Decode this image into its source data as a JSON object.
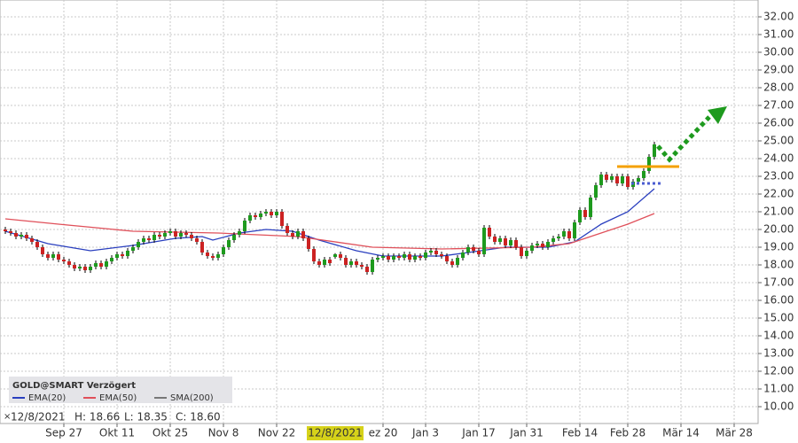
{
  "chart_data": {
    "type": "candlestick",
    "legend_title": "GOLD@SMART Verzögert",
    "info": {
      "date": "12/8/2021",
      "high": "H: 18.66",
      "low": "L: 18.35",
      "close": "C: 18.60"
    },
    "crosshair": {
      "x": 62,
      "label": "12/8/2021"
    },
    "xlim": [
      -1,
      141.5
    ],
    "ylim": [
      9.05,
      32.5
    ],
    "xticks": [
      {
        "value": 11,
        "label": "Sep 27"
      },
      {
        "value": 21,
        "label": "Okt 11"
      },
      {
        "value": 31,
        "label": "Okt 25"
      },
      {
        "value": 41,
        "label": "Nov 8"
      },
      {
        "value": 51,
        "label": "Nov 22"
      },
      {
        "value": 71,
        "label": "ez 20"
      },
      {
        "value": 79,
        "label": "Jan 3"
      },
      {
        "value": 89,
        "label": "Jan 17"
      },
      {
        "value": 98,
        "label": "Jan 31"
      },
      {
        "value": 108,
        "label": "Feb 14"
      },
      {
        "value": 117,
        "label": "Feb 28"
      },
      {
        "value": 127,
        "label": "Mär 14"
      },
      {
        "value": 137,
        "label": "Mär 28"
      }
    ],
    "yticks": [
      {
        "value": 10,
        "label": "10.00"
      },
      {
        "value": 11,
        "label": "11.00"
      },
      {
        "value": 12,
        "label": "12.00"
      },
      {
        "value": 13,
        "label": "13.00"
      },
      {
        "value": 14,
        "label": "14.00"
      },
      {
        "value": 15,
        "label": "15.00"
      },
      {
        "value": 16,
        "label": "16.00"
      },
      {
        "value": 17,
        "label": "17.00"
      },
      {
        "value": 18,
        "label": "18.00"
      },
      {
        "value": 19,
        "label": "19.00"
      },
      {
        "value": 20,
        "label": "20.00"
      },
      {
        "value": 21,
        "label": "21.00"
      },
      {
        "value": 22,
        "label": "22.00"
      },
      {
        "value": 23,
        "label": "23.00"
      },
      {
        "value": 24,
        "label": "24.00"
      },
      {
        "value": 25,
        "label": "25.00"
      },
      {
        "value": 26,
        "label": "26.00"
      },
      {
        "value": 27,
        "label": "27.00"
      },
      {
        "value": 28,
        "label": "28.00"
      },
      {
        "value": 29,
        "label": "29.00"
      },
      {
        "value": 30,
        "label": "30.00"
      },
      {
        "value": 31,
        "label": "31.00"
      },
      {
        "value": 32,
        "label": "32.00"
      }
    ],
    "grid": true,
    "up_color": "#1e9a1e",
    "down_color": "#cc2222",
    "x": [
      0,
      1,
      2,
      3,
      4,
      5,
      6,
      7,
      8,
      9,
      10,
      11,
      12,
      13,
      14,
      15,
      16,
      17,
      18,
      19,
      20,
      21,
      22,
      23,
      24,
      25,
      26,
      27,
      28,
      29,
      30,
      31,
      32,
      33,
      34,
      35,
      36,
      37,
      38,
      39,
      40,
      41,
      42,
      43,
      44,
      45,
      46,
      47,
      48,
      49,
      50,
      51,
      52,
      53,
      54,
      55,
      56,
      57,
      58,
      59,
      60,
      61,
      62,
      63,
      64,
      65,
      66,
      67,
      68,
      69,
      70,
      71,
      72,
      73,
      74,
      75,
      76,
      77,
      78,
      79,
      80,
      81,
      82,
      83,
      84,
      85,
      86,
      87,
      88,
      89,
      90,
      91,
      92,
      93,
      94,
      95,
      96,
      97,
      98,
      99,
      100,
      101,
      102,
      103,
      104,
      105,
      106,
      107,
      108,
      109,
      110,
      111,
      112,
      113,
      114,
      115,
      116,
      117,
      118,
      119,
      120,
      121,
      122
    ],
    "ohlc": [
      [
        20.0,
        20.15,
        19.75,
        19.9
      ],
      [
        19.9,
        20.05,
        19.65,
        19.8
      ],
      [
        19.8,
        19.95,
        19.45,
        19.6
      ],
      [
        19.6,
        19.85,
        19.45,
        19.7
      ],
      [
        19.7,
        19.85,
        19.35,
        19.5
      ],
      [
        19.5,
        19.65,
        19.15,
        19.3
      ],
      [
        19.3,
        19.45,
        18.85,
        19.0
      ],
      [
        19.0,
        19.15,
        18.45,
        18.6
      ],
      [
        18.6,
        18.75,
        18.25,
        18.4
      ],
      [
        18.4,
        18.75,
        18.25,
        18.6
      ],
      [
        18.6,
        18.75,
        18.15,
        18.3
      ],
      [
        18.3,
        18.45,
        18.05,
        18.2
      ],
      [
        18.2,
        18.35,
        17.85,
        18.0
      ],
      [
        18.0,
        18.15,
        17.65,
        17.8
      ],
      [
        17.8,
        18.05,
        17.65,
        17.9
      ],
      [
        17.9,
        18.05,
        17.55,
        17.7
      ],
      [
        17.7,
        18.05,
        17.55,
        17.9
      ],
      [
        17.9,
        18.25,
        17.75,
        18.1
      ],
      [
        18.1,
        18.25,
        17.75,
        17.9
      ],
      [
        17.9,
        18.35,
        17.75,
        18.2
      ],
      [
        18.2,
        18.55,
        18.05,
        18.4
      ],
      [
        18.4,
        18.75,
        18.25,
        18.6
      ],
      [
        18.6,
        18.75,
        18.35,
        18.5
      ],
      [
        18.5,
        18.95,
        18.35,
        18.8
      ],
      [
        18.8,
        19.15,
        18.65,
        19.0
      ],
      [
        19.0,
        19.45,
        18.85,
        19.3
      ],
      [
        19.3,
        19.65,
        19.15,
        19.5
      ],
      [
        19.5,
        19.65,
        19.25,
        19.4
      ],
      [
        19.4,
        19.85,
        19.25,
        19.7
      ],
      [
        19.7,
        19.85,
        19.45,
        19.6
      ],
      [
        19.6,
        19.95,
        19.45,
        19.8
      ],
      [
        19.8,
        20.05,
        19.65,
        19.9
      ],
      [
        19.9,
        20.05,
        19.45,
        19.6
      ],
      [
        19.6,
        19.95,
        19.45,
        19.8
      ],
      [
        19.8,
        19.95,
        19.55,
        19.7
      ],
      [
        19.7,
        19.85,
        19.35,
        19.5
      ],
      [
        19.5,
        19.65,
        19.15,
        19.3
      ],
      [
        19.3,
        19.45,
        18.55,
        18.7
      ],
      [
        18.7,
        18.85,
        18.35,
        18.5
      ],
      [
        18.5,
        18.65,
        18.25,
        18.4
      ],
      [
        18.4,
        18.75,
        18.25,
        18.6
      ],
      [
        18.6,
        19.15,
        18.45,
        19.0
      ],
      [
        19.0,
        19.55,
        18.85,
        19.4
      ],
      [
        19.4,
        19.85,
        19.25,
        19.7
      ],
      [
        19.7,
        20.05,
        19.55,
        19.9
      ],
      [
        19.9,
        20.65,
        19.75,
        20.5
      ],
      [
        20.5,
        20.95,
        20.35,
        20.8
      ],
      [
        20.8,
        20.95,
        20.55,
        20.7
      ],
      [
        20.7,
        21.05,
        20.55,
        20.9
      ],
      [
        20.9,
        21.15,
        20.75,
        21.0
      ],
      [
        21.0,
        21.15,
        20.65,
        20.8
      ],
      [
        20.8,
        21.15,
        20.65,
        21.0
      ],
      [
        21.0,
        21.15,
        20.05,
        20.2
      ],
      [
        20.2,
        20.35,
        19.65,
        19.8
      ],
      [
        19.8,
        19.95,
        19.45,
        19.6
      ],
      [
        19.6,
        20.05,
        19.45,
        19.9
      ],
      [
        19.9,
        20.05,
        19.35,
        19.5
      ],
      [
        19.5,
        19.65,
        18.75,
        18.9
      ],
      [
        18.9,
        19.05,
        18.05,
        18.2
      ],
      [
        18.2,
        18.35,
        17.85,
        18.0
      ],
      [
        18.0,
        18.45,
        17.85,
        18.3
      ],
      [
        18.3,
        18.45,
        17.95,
        18.1
      ],
      [
        18.45,
        18.66,
        18.35,
        18.6
      ],
      [
        18.6,
        18.75,
        18.25,
        18.4
      ],
      [
        18.4,
        18.55,
        17.85,
        18.0
      ],
      [
        18.0,
        18.35,
        17.85,
        18.2
      ],
      [
        18.2,
        18.35,
        17.85,
        18.0
      ],
      [
        18.0,
        18.15,
        17.75,
        17.9
      ],
      [
        17.9,
        18.05,
        17.45,
        17.6
      ],
      [
        17.6,
        18.45,
        17.45,
        18.3
      ],
      [
        18.3,
        18.55,
        18.15,
        18.4
      ],
      [
        18.4,
        18.65,
        18.25,
        18.5
      ],
      [
        18.5,
        18.65,
        18.15,
        18.3
      ],
      [
        18.3,
        18.65,
        18.15,
        18.5
      ],
      [
        18.5,
        18.65,
        18.25,
        18.4
      ],
      [
        18.4,
        18.75,
        18.25,
        18.6
      ],
      [
        18.6,
        18.75,
        18.15,
        18.3
      ],
      [
        18.3,
        18.65,
        18.15,
        18.5
      ],
      [
        18.5,
        18.65,
        18.25,
        18.4
      ],
      [
        18.4,
        18.85,
        18.25,
        18.7
      ],
      [
        18.7,
        18.95,
        18.55,
        18.8
      ],
      [
        18.8,
        18.95,
        18.45,
        18.6
      ],
      [
        18.6,
        18.75,
        18.35,
        18.5
      ],
      [
        18.5,
        18.65,
        18.05,
        18.2
      ],
      [
        18.2,
        18.35,
        17.85,
        18.0
      ],
      [
        18.0,
        18.55,
        17.85,
        18.4
      ],
      [
        18.4,
        18.85,
        18.25,
        18.7
      ],
      [
        18.7,
        19.15,
        18.55,
        19.0
      ],
      [
        19.0,
        19.15,
        18.65,
        18.8
      ],
      [
        18.8,
        18.95,
        18.45,
        18.6
      ],
      [
        18.6,
        20.25,
        18.45,
        20.1
      ],
      [
        20.1,
        20.25,
        19.45,
        19.6
      ],
      [
        19.6,
        19.75,
        19.15,
        19.3
      ],
      [
        19.3,
        19.65,
        19.15,
        19.5
      ],
      [
        19.5,
        19.65,
        18.95,
        19.1
      ],
      [
        19.1,
        19.55,
        18.95,
        19.4
      ],
      [
        19.4,
        19.55,
        18.85,
        19.0
      ],
      [
        19.0,
        19.15,
        18.35,
        18.5
      ],
      [
        18.5,
        18.95,
        18.35,
        18.8
      ],
      [
        18.8,
        19.25,
        18.65,
        19.1
      ],
      [
        19.1,
        19.35,
        18.95,
        19.2
      ],
      [
        19.2,
        19.35,
        18.85,
        19.0
      ],
      [
        19.0,
        19.45,
        18.85,
        19.3
      ],
      [
        19.3,
        19.65,
        19.15,
        19.5
      ],
      [
        19.5,
        19.75,
        19.35,
        19.6
      ],
      [
        19.6,
        20.05,
        19.45,
        19.9
      ],
      [
        19.9,
        20.05,
        19.35,
        19.5
      ],
      [
        19.5,
        20.55,
        19.35,
        20.4
      ],
      [
        20.4,
        21.25,
        20.25,
        21.1
      ],
      [
        21.1,
        21.25,
        20.55,
        20.7
      ],
      [
        20.7,
        21.95,
        20.55,
        21.8
      ],
      [
        21.8,
        22.65,
        21.65,
        22.5
      ],
      [
        22.5,
        23.25,
        22.35,
        23.1
      ],
      [
        23.1,
        23.25,
        22.65,
        22.8
      ],
      [
        22.8,
        23.15,
        22.65,
        23.0
      ],
      [
        23.0,
        23.15,
        22.45,
        22.6
      ],
      [
        22.6,
        23.15,
        22.45,
        23.0
      ],
      [
        23.0,
        23.15,
        22.25,
        22.4
      ],
      [
        22.4,
        22.85,
        22.25,
        22.7
      ],
      [
        22.7,
        23.05,
        22.55,
        22.9
      ],
      [
        22.9,
        23.45,
        22.75,
        23.3
      ],
      [
        23.3,
        24.25,
        23.15,
        24.1
      ],
      [
        24.1,
        24.95,
        23.95,
        24.8
      ]
    ],
    "series": [
      {
        "name": "EMA(20)",
        "color": "#2a3fbf",
        "x": [
          0,
          8,
          16,
          24,
          32,
          37,
          39,
          44,
          49,
          54,
          59,
          66,
          71,
          82,
          87,
          94,
          102,
          107,
          112,
          117,
          122
        ],
        "values": [
          19.9,
          19.2,
          18.8,
          19.1,
          19.5,
          19.6,
          19.4,
          19.8,
          20.0,
          19.9,
          19.4,
          18.8,
          18.5,
          18.5,
          18.7,
          19.0,
          19.0,
          19.3,
          20.3,
          21.0,
          22.3
        ]
      },
      {
        "name": "EMA(50)",
        "color": "#e0505a",
        "x": [
          0,
          10,
          24,
          40,
          55,
          69,
          82,
          99,
          106,
          112,
          117,
          122
        ],
        "values": [
          20.6,
          20.3,
          19.9,
          19.8,
          19.6,
          19.0,
          18.9,
          19.0,
          19.2,
          19.8,
          20.3,
          20.9
        ]
      },
      {
        "name": "SMA(200)",
        "color": "#777777",
        "x": [],
        "values": []
      }
    ]
  }
}
